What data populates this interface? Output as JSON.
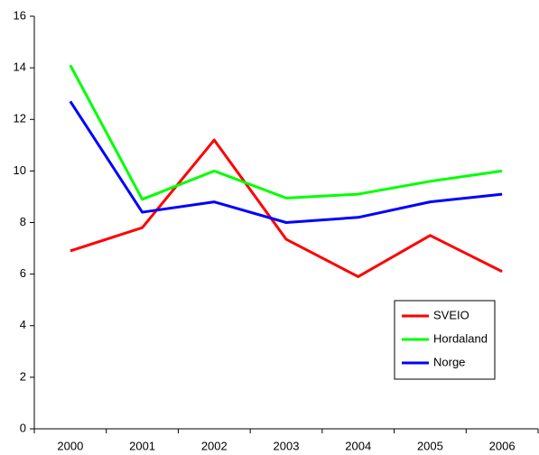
{
  "chart_data": {
    "type": "line",
    "categories": [
      "2000",
      "2001",
      "2002",
      "2003",
      "2004",
      "2005",
      "2006"
    ],
    "series": [
      {
        "name": "SVEIO",
        "color": "#ff0000",
        "values": [
          6.9,
          7.8,
          11.2,
          7.35,
          5.9,
          7.5,
          6.1
        ]
      },
      {
        "name": "Hordaland",
        "color": "#00ff00",
        "values": [
          14.1,
          8.9,
          10.0,
          8.95,
          9.1,
          9.6,
          10.0
        ]
      },
      {
        "name": "Norge",
        "color": "#0000ff",
        "values": [
          12.7,
          8.4,
          8.8,
          8.0,
          8.2,
          8.8,
          9.1
        ]
      }
    ],
    "ylim": [
      0,
      16
    ],
    "yticks": [
      0,
      2,
      4,
      6,
      8,
      10,
      12,
      14,
      16
    ],
    "grid": false,
    "legend": "lower right"
  }
}
